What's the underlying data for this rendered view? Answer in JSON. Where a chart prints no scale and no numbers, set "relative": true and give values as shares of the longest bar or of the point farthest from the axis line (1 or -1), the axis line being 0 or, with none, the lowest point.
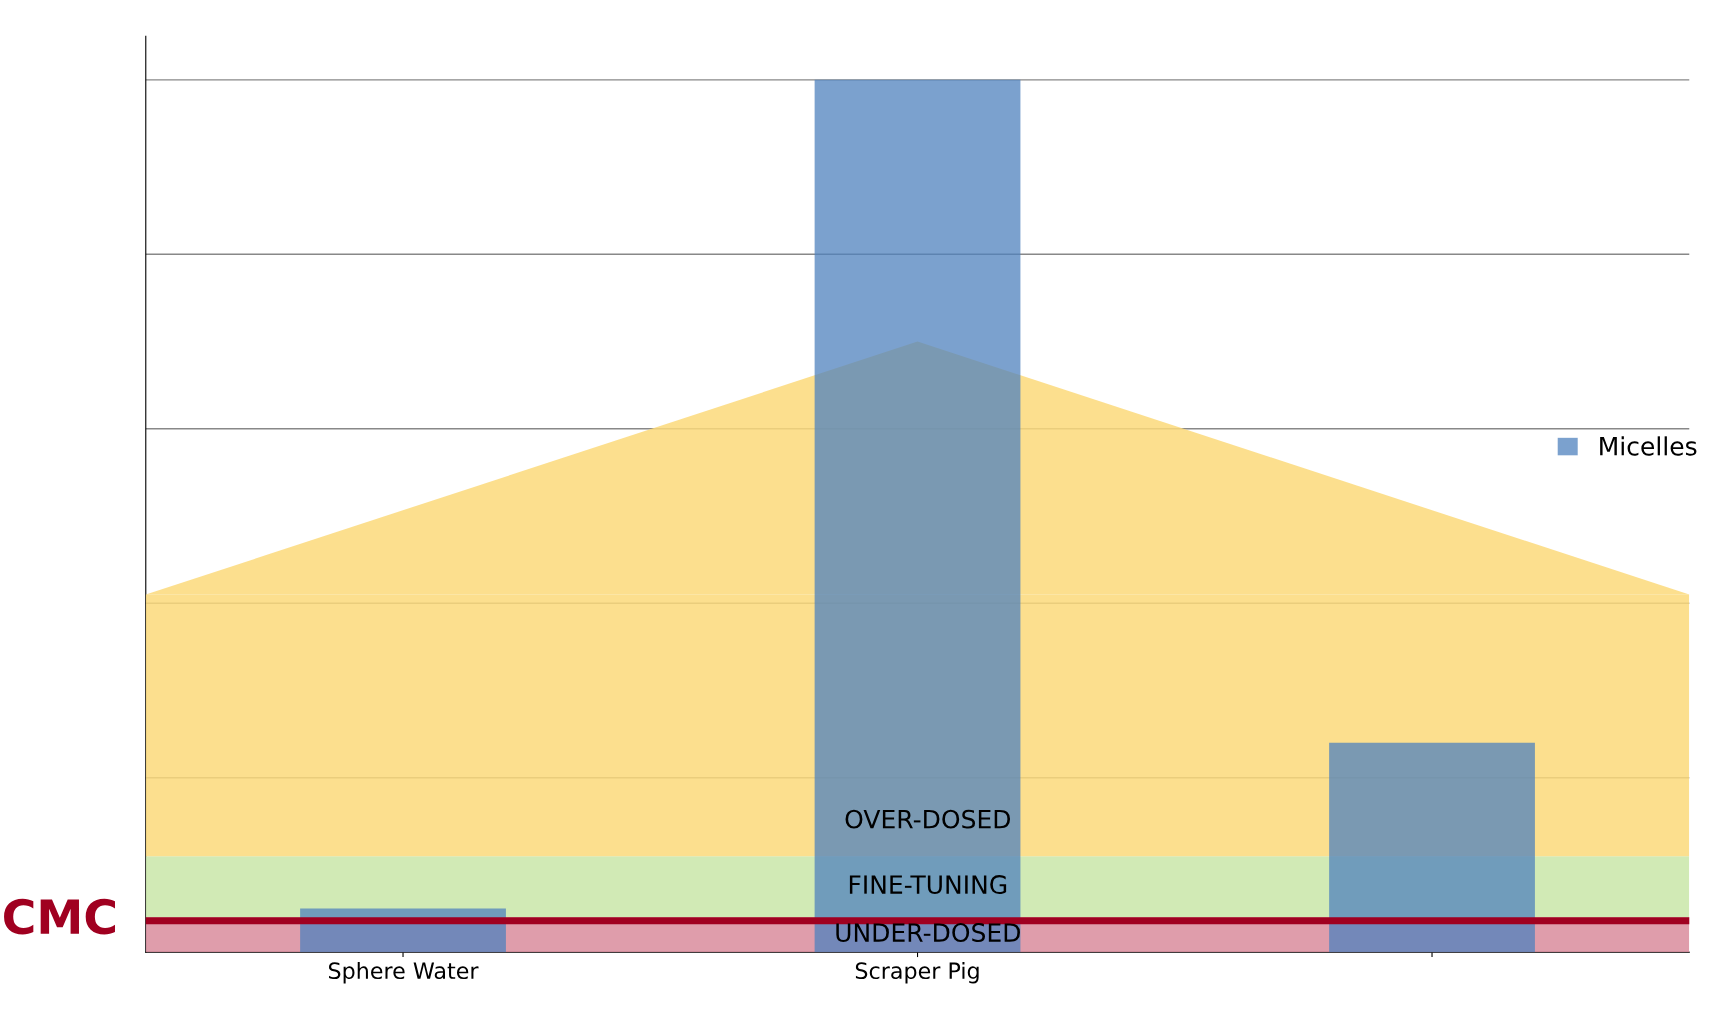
{
  "chart_data": {
    "type": "bar",
    "categories": [
      "Sphere Water",
      "Scraper Pig",
      null
    ],
    "series": [
      {
        "name": "Micelles",
        "color": "#4f81bd",
        "values": [
          0.05,
          1,
          0.24
        ]
      }
    ],
    "relative": true,
    "grid": "y",
    "legend": "right",
    "bands": [
      {
        "axis": "y",
        "from": 0,
        "to": 0.04,
        "label": "UNDER-DOSED",
        "color": "#d98c9c"
      },
      {
        "axis": "y",
        "from": 0.04,
        "to": 0.11,
        "label": "FINE-TUNING",
        "color": "#c9e6a8"
      },
      {
        "axis": "y",
        "from": 0.11,
        "to": 0.41,
        "label": "OVER-DOSED",
        "color": "#fcd97a"
      }
    ],
    "ref_lines": [
      {
        "axis": "y",
        "value": 0.036,
        "label": "CMC",
        "color": "#a00020"
      }
    ]
  }
}
